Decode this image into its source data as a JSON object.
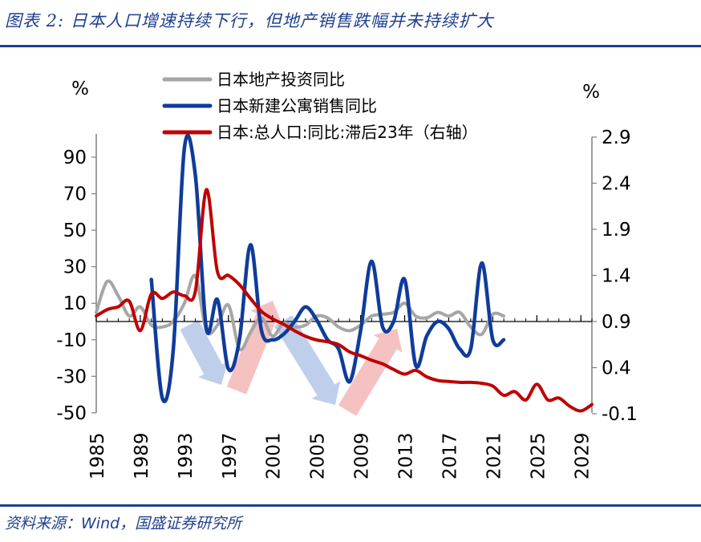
{
  "figure": {
    "title": "图表 2:  日本人口增速持续下行，但地产销售跌幅并未持续扩大",
    "source": "资料来源：Wind，国盛证券研究所"
  },
  "chart_data": {
    "type": "line",
    "left_unit": "%",
    "right_unit": "%",
    "left_axis": {
      "ylim": [
        -50,
        100
      ],
      "ticks": [
        "90",
        "70",
        "50",
        "30",
        "10",
        "-10",
        "-30",
        "-50"
      ]
    },
    "right_axis": {
      "ylim": [
        -0.1,
        2.9
      ],
      "ticks": [
        "2.9",
        "2.4",
        "1.9",
        "1.4",
        "0.9",
        "0.4",
        "-0.1"
      ]
    },
    "x_axis": {
      "xlim": [
        1985,
        2030
      ],
      "ticks": [
        "1985",
        "1989",
        "1993",
        "1997",
        "2001",
        "2005",
        "2009",
        "2013",
        "2017",
        "2021",
        "2025",
        "2029"
      ]
    },
    "legend_position": "top",
    "series": [
      {
        "name": "日本地产投资同比",
        "axis": "left",
        "color": "#A6A6A6",
        "x": [
          1985,
          1986,
          1987,
          1988,
          1989,
          1990,
          1991,
          1992,
          1993,
          1994,
          1995,
          1996,
          1997,
          1998,
          1999,
          2000,
          2001,
          2002,
          2003,
          2004,
          2005,
          2006,
          2007,
          2008,
          2009,
          2010,
          2011,
          2012,
          2013,
          2014,
          2015,
          2016,
          2017,
          2018,
          2019,
          2020,
          2021,
          2022
        ],
        "values": [
          5,
          22,
          14,
          3,
          8,
          -2,
          -3,
          0,
          10,
          25,
          -5,
          -2,
          9,
          -15,
          -6,
          2,
          -8,
          -1,
          -3,
          -2,
          3,
          2,
          -3,
          -5,
          -2,
          3,
          4,
          5,
          10,
          3,
          2,
          5,
          3,
          5,
          -3,
          -7,
          4,
          3
        ]
      },
      {
        "name": "日本新建公寓销售同比",
        "axis": "left",
        "color": "#0F3C9A",
        "x": [
          1990,
          1991,
          1992,
          1993,
          1994,
          1995,
          1996,
          1997,
          1998,
          1999,
          2000,
          2001,
          2002,
          2003,
          2004,
          2005,
          2006,
          2007,
          2008,
          2009,
          2010,
          2011,
          2012,
          2013,
          2014,
          2015,
          2016,
          2017,
          2018,
          2019,
          2020,
          2021,
          2022
        ],
        "values": [
          23,
          -42,
          -15,
          95,
          80,
          -4,
          12,
          -26,
          -10,
          42,
          -5,
          -10,
          -7,
          0,
          8,
          1,
          -10,
          -15,
          -33,
          -5,
          33,
          -3,
          0,
          23,
          -24,
          -8,
          0,
          -4,
          -15,
          -15,
          32,
          -10,
          -10
        ]
      },
      {
        "name": "日本:总人口:同比:滞后23年（右轴）",
        "axis": "right",
        "color": "#C00000",
        "x": [
          1985,
          1986,
          1987,
          1988,
          1989,
          1990,
          1991,
          1992,
          1993,
          1994,
          1995,
          1996,
          1997,
          1998,
          1999,
          2000,
          2001,
          2002,
          2003,
          2004,
          2005,
          2006,
          2007,
          2008,
          2009,
          2010,
          2011,
          2012,
          2013,
          2014,
          2015,
          2016,
          2017,
          2018,
          2019,
          2020,
          2021,
          2022,
          2023,
          2024,
          2025,
          2026,
          2027,
          2028,
          2029,
          2030
        ],
        "values": [
          0.96,
          1.03,
          1.06,
          1.12,
          0.8,
          1.2,
          1.15,
          1.22,
          1.18,
          1.23,
          2.33,
          1.44,
          1.4,
          1.3,
          1.15,
          1.01,
          0.93,
          0.87,
          0.8,
          0.74,
          0.7,
          0.68,
          0.65,
          0.57,
          0.53,
          0.48,
          0.44,
          0.38,
          0.33,
          0.37,
          0.3,
          0.26,
          0.25,
          0.24,
          0.24,
          0.23,
          0.2,
          0.1,
          0.14,
          0.05,
          0.22,
          0.05,
          0.07,
          -0.02,
          -0.07,
          0.0
        ]
      }
    ]
  }
}
